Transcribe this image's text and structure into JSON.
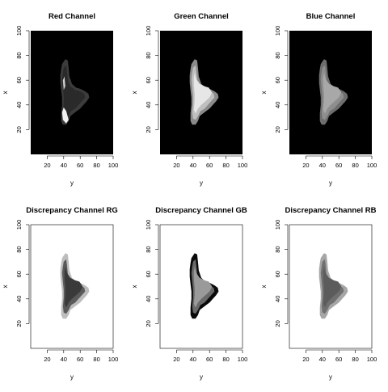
{
  "chart_data": [
    {
      "type": "heatmap",
      "title": "Red Channel",
      "xlabel": "y",
      "ylabel": "x",
      "xlim": [
        0,
        100
      ],
      "ylim": [
        0,
        100
      ],
      "xticks": [
        20,
        40,
        60,
        80,
        100
      ],
      "yticks": [
        20,
        40,
        60,
        80,
        100
      ],
      "background": "#000000",
      "colormap": "grayscale"
    },
    {
      "type": "heatmap",
      "title": "Green Channel",
      "xlabel": "y",
      "ylabel": "x",
      "xlim": [
        0,
        100
      ],
      "ylim": [
        0,
        100
      ],
      "xticks": [
        20,
        40,
        60,
        80,
        100
      ],
      "yticks": [
        20,
        40,
        60,
        80,
        100
      ],
      "background": "#000000",
      "colormap": "grayscale"
    },
    {
      "type": "heatmap",
      "title": "Blue Channel",
      "xlabel": "y",
      "ylabel": "x",
      "xlim": [
        0,
        100
      ],
      "ylim": [
        0,
        100
      ],
      "xticks": [
        20,
        40,
        60,
        80,
        100
      ],
      "yticks": [
        20,
        40,
        60,
        80,
        100
      ],
      "background": "#000000",
      "colormap": "grayscale"
    },
    {
      "type": "heatmap",
      "title": "Discrepancy Channel RG",
      "xlabel": "y",
      "ylabel": "x",
      "xlim": [
        0,
        100
      ],
      "ylim": [
        0,
        100
      ],
      "xticks": [
        20,
        40,
        60,
        80,
        100
      ],
      "yticks": [
        20,
        40,
        60,
        80,
        100
      ],
      "background": "#ffffff",
      "colormap": "grayscale"
    },
    {
      "type": "heatmap",
      "title": "Discrepancy Channel GB",
      "xlabel": "y",
      "ylabel": "x",
      "xlim": [
        0,
        100
      ],
      "ylim": [
        0,
        100
      ],
      "xticks": [
        20,
        40,
        60,
        80,
        100
      ],
      "yticks": [
        20,
        40,
        60,
        80,
        100
      ],
      "background": "#ffffff",
      "colormap": "grayscale"
    },
    {
      "type": "heatmap",
      "title": "Discrepancy Channel RB",
      "xlabel": "y",
      "ylabel": "x",
      "xlim": [
        0,
        100
      ],
      "ylim": [
        0,
        100
      ],
      "xticks": [
        20,
        40,
        60,
        80,
        100
      ],
      "yticks": [
        20,
        40,
        60,
        80,
        100
      ],
      "background": "#ffffff",
      "colormap": "grayscale"
    }
  ]
}
